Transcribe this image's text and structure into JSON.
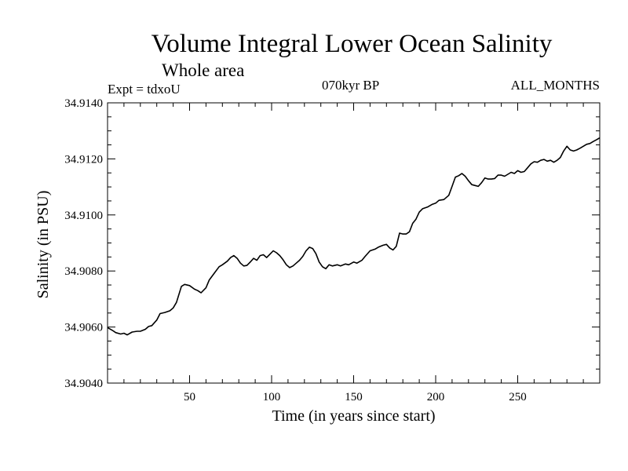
{
  "chart_data": {
    "type": "line",
    "title": "Volume Integral Lower Ocean Salinity",
    "subtitle": "Whole area",
    "experiment_label": "Expt = tdxoU",
    "period_label": "070kyr BP",
    "months_label": "ALL_MONTHS",
    "xlabel": "Time (in years since start)",
    "ylabel": "Salinity (in PSU)",
    "xlim": [
      0,
      300
    ],
    "ylim": [
      34.904,
      34.914
    ],
    "x_ticks": [
      50,
      100,
      150,
      200,
      250
    ],
    "y_ticks": [
      "34.9040",
      "34.9060",
      "34.9080",
      "34.9100",
      "34.9120",
      "34.9140"
    ],
    "grid": false,
    "series": [
      {
        "color": "#000000",
        "points": [
          [
            0,
            34.90598
          ],
          [
            3,
            34.90588
          ],
          [
            5,
            34.9058
          ],
          [
            8,
            34.90575
          ],
          [
            10,
            34.90578
          ],
          [
            12,
            34.90572
          ],
          [
            15,
            34.90582
          ],
          [
            18,
            34.90585
          ],
          [
            20,
            34.90585
          ],
          [
            23,
            34.90592
          ],
          [
            25,
            34.90602
          ],
          [
            27,
            34.90605
          ],
          [
            30,
            34.90625
          ],
          [
            32,
            34.90648
          ],
          [
            35,
            34.90652
          ],
          [
            38,
            34.90658
          ],
          [
            40,
            34.90668
          ],
          [
            42,
            34.90688
          ],
          [
            45,
            34.90745
          ],
          [
            47,
            34.90752
          ],
          [
            50,
            34.90748
          ],
          [
            53,
            34.90735
          ],
          [
            55,
            34.9073
          ],
          [
            57,
            34.90722
          ],
          [
            60,
            34.9074
          ],
          [
            62,
            34.90768
          ],
          [
            65,
            34.90792
          ],
          [
            68,
            34.90815
          ],
          [
            70,
            34.90822
          ],
          [
            73,
            34.90835
          ],
          [
            75,
            34.90848
          ],
          [
            77,
            34.90855
          ],
          [
            79,
            34.90845
          ],
          [
            81,
            34.90828
          ],
          [
            83,
            34.90818
          ],
          [
            85,
            34.9082
          ],
          [
            87,
            34.90832
          ],
          [
            89,
            34.90845
          ],
          [
            91,
            34.90838
          ],
          [
            93,
            34.90855
          ],
          [
            95,
            34.90858
          ],
          [
            97,
            34.90848
          ],
          [
            99,
            34.9086
          ],
          [
            101,
            34.90872
          ],
          [
            103,
            34.90865
          ],
          [
            105,
            34.90855
          ],
          [
            107,
            34.9084
          ],
          [
            109,
            34.90822
          ],
          [
            111,
            34.90812
          ],
          [
            113,
            34.90818
          ],
          [
            115,
            34.90828
          ],
          [
            117,
            34.90838
          ],
          [
            119,
            34.90852
          ],
          [
            121,
            34.90872
          ],
          [
            123,
            34.90885
          ],
          [
            125,
            34.9088
          ],
          [
            127,
            34.90862
          ],
          [
            129,
            34.90832
          ],
          [
            131,
            34.90815
          ],
          [
            133,
            34.90808
          ],
          [
            135,
            34.90822
          ],
          [
            137,
            34.90818
          ],
          [
            140,
            34.90822
          ],
          [
            142,
            34.90818
          ],
          [
            145,
            34.90825
          ],
          [
            147,
            34.90822
          ],
          [
            150,
            34.90832
          ],
          [
            152,
            34.90828
          ],
          [
            155,
            34.90838
          ],
          [
            157,
            34.90852
          ],
          [
            160,
            34.90872
          ],
          [
            163,
            34.90878
          ],
          [
            165,
            34.90885
          ],
          [
            168,
            34.90892
          ],
          [
            170,
            34.90895
          ],
          [
            172,
            34.90882
          ],
          [
            174,
            34.90875
          ],
          [
            176,
            34.90888
          ],
          [
            178,
            34.90935
          ],
          [
            180,
            34.90932
          ],
          [
            182,
            34.90932
          ],
          [
            184,
            34.9094
          ],
          [
            186,
            34.9097
          ],
          [
            188,
            34.90985
          ],
          [
            190,
            34.9101
          ],
          [
            192,
            34.91022
          ],
          [
            195,
            34.91028
          ],
          [
            198,
            34.91038
          ],
          [
            200,
            34.91042
          ],
          [
            202,
            34.91052
          ],
          [
            205,
            34.91055
          ],
          [
            208,
            34.9107
          ],
          [
            210,
            34.91102
          ],
          [
            212,
            34.91135
          ],
          [
            214,
            34.9114
          ],
          [
            216,
            34.91148
          ],
          [
            218,
            34.91138
          ],
          [
            220,
            34.91122
          ],
          [
            222,
            34.91108
          ],
          [
            224,
            34.91105
          ],
          [
            226,
            34.91102
          ],
          [
            228,
            34.91115
          ],
          [
            230,
            34.91132
          ],
          [
            232,
            34.91128
          ],
          [
            234,
            34.91128
          ],
          [
            236,
            34.9113
          ],
          [
            238,
            34.91142
          ],
          [
            240,
            34.91142
          ],
          [
            242,
            34.91138
          ],
          [
            244,
            34.91145
          ],
          [
            246,
            34.91152
          ],
          [
            248,
            34.91148
          ],
          [
            250,
            34.91158
          ],
          [
            252,
            34.91152
          ],
          [
            254,
            34.91155
          ],
          [
            256,
            34.91168
          ],
          [
            258,
            34.91182
          ],
          [
            260,
            34.9119
          ],
          [
            262,
            34.91188
          ],
          [
            264,
            34.91195
          ],
          [
            266,
            34.91198
          ],
          [
            268,
            34.91192
          ],
          [
            270,
            34.91195
          ],
          [
            272,
            34.91188
          ],
          [
            274,
            34.91195
          ],
          [
            276,
            34.91205
          ],
          [
            278,
            34.91228
          ],
          [
            280,
            34.91245
          ],
          [
            282,
            34.91232
          ],
          [
            284,
            34.91228
          ],
          [
            286,
            34.91232
          ],
          [
            288,
            34.91238
          ],
          [
            290,
            34.91245
          ],
          [
            292,
            34.91252
          ],
          [
            294,
            34.91255
          ],
          [
            296,
            34.91262
          ],
          [
            298,
            34.91268
          ],
          [
            300,
            34.91275
          ]
        ]
      }
    ]
  }
}
